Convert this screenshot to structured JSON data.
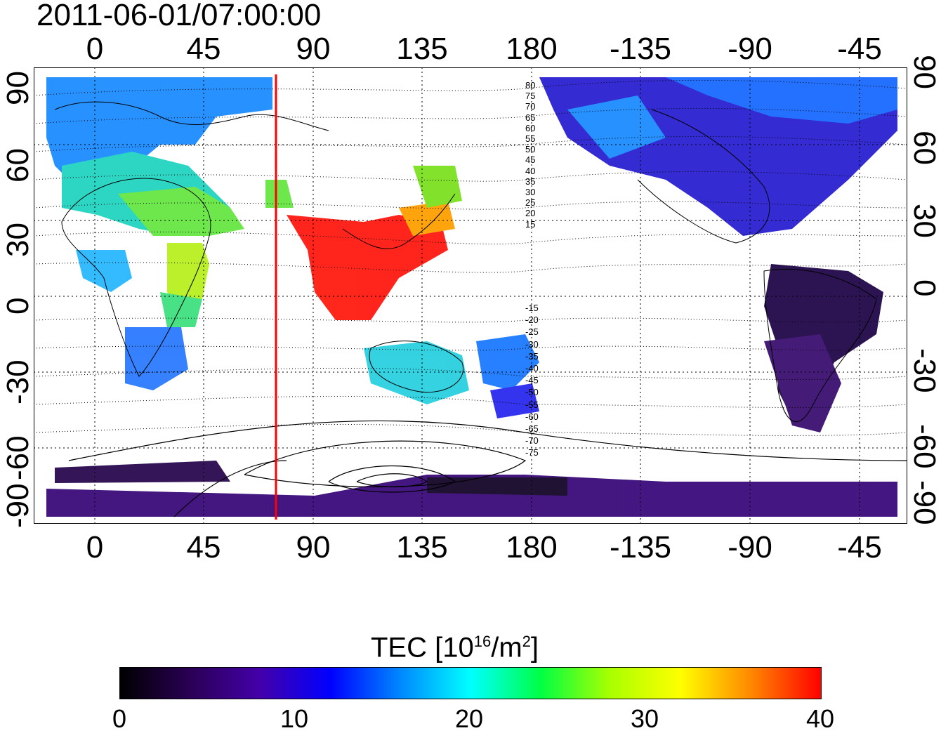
{
  "header": {
    "timestamp": "2011-06-01/07:00:00"
  },
  "axes": {
    "lon_ticks": [
      "0",
      "45",
      "90",
      "135",
      "180",
      "-135",
      "-90",
      "-45"
    ],
    "lat_ticks": [
      "90",
      "60",
      "30",
      "0",
      "-30",
      "-60",
      "-90"
    ]
  },
  "contour_labels_north": [
    "80",
    "75",
    "70",
    "65",
    "60",
    "55",
    "50",
    "45",
    "40",
    "35",
    "30",
    "25",
    "20",
    "15"
  ],
  "contour_labels_south": [
    "-15",
    "-20",
    "-25",
    "-30",
    "-35",
    "-40",
    "-45",
    "-50",
    "-55",
    "-60",
    "-65",
    "-70",
    "-75"
  ],
  "colorbar": {
    "title_main": "TEC  [10",
    "title_exp": "16",
    "title_mid": "/m",
    "title_exp2": "2",
    "title_end": "]",
    "ticks": [
      "0",
      "10",
      "20",
      "30",
      "40"
    ],
    "min": 0,
    "max": 40,
    "colors": [
      "#000000",
      "#2a0055",
      "#4400aa",
      "#0000ff",
      "#0088ff",
      "#00ffff",
      "#00ff44",
      "#aaff00",
      "#ffff00",
      "#ff8800",
      "#ff0000"
    ]
  },
  "overlay": {
    "meridian_line_lon": 75,
    "meridian_line_color": "#ff0000"
  }
}
